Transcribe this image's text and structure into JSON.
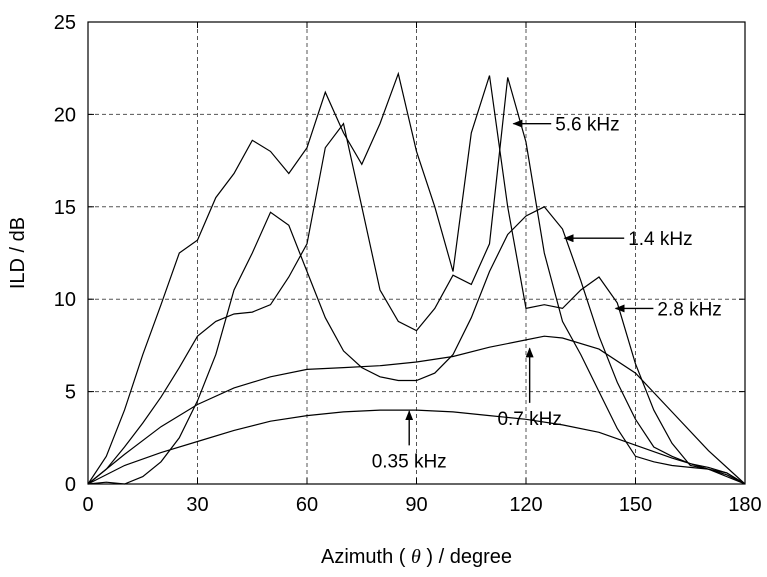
{
  "chart_data": {
    "type": "line",
    "title": "",
    "xlabel_prefix": "Azimuth ( ",
    "xlabel_symbol": "θ",
    "xlabel_suffix": " ) / degree",
    "ylabel": "ILD / dB",
    "xlim": [
      0,
      180
    ],
    "ylim": [
      0,
      25
    ],
    "xticks": [
      0,
      30,
      60,
      90,
      120,
      150,
      180
    ],
    "yticks": [
      0,
      5,
      10,
      15,
      20,
      25
    ],
    "grid": true,
    "line_color": "#000000",
    "series": [
      {
        "name": "0.35 kHz",
        "x": [
          0,
          10,
          20,
          30,
          40,
          50,
          60,
          70,
          80,
          90,
          100,
          110,
          120,
          130,
          140,
          150,
          160,
          170,
          180
        ],
        "y": [
          0,
          1.0,
          1.7,
          2.3,
          2.9,
          3.4,
          3.7,
          3.9,
          4.0,
          4.0,
          3.9,
          3.7,
          3.5,
          3.2,
          2.8,
          2.1,
          1.4,
          0.8,
          0
        ]
      },
      {
        "name": "0.7 kHz",
        "x": [
          0,
          10,
          20,
          30,
          40,
          50,
          60,
          70,
          80,
          90,
          100,
          110,
          120,
          125,
          130,
          140,
          150,
          160,
          170,
          180
        ],
        "y": [
          0,
          1.6,
          3.1,
          4.3,
          5.2,
          5.8,
          6.2,
          6.3,
          6.4,
          6.6,
          6.9,
          7.4,
          7.8,
          8.0,
          7.9,
          7.3,
          6.0,
          3.9,
          1.8,
          0
        ]
      },
      {
        "name": "1.4 kHz",
        "x": [
          0,
          5,
          10,
          15,
          20,
          25,
          30,
          35,
          40,
          45,
          50,
          55,
          60,
          65,
          70,
          75,
          80,
          85,
          90,
          95,
          100,
          105,
          110,
          115,
          120,
          125,
          130,
          135,
          140,
          145,
          150,
          155,
          160,
          165,
          170,
          175,
          180
        ],
        "y": [
          0,
          0.8,
          2.0,
          3.3,
          4.7,
          6.3,
          8.0,
          8.8,
          9.2,
          9.3,
          9.7,
          11.2,
          13.0,
          18.2,
          19.5,
          15.0,
          10.5,
          8.8,
          8.3,
          9.5,
          11.3,
          10.8,
          13.0,
          22.0,
          18.5,
          12.5,
          8.8,
          7.0,
          5.0,
          3.0,
          1.5,
          1.2,
          1.0,
          0.9,
          0.8,
          0.5,
          0
        ]
      },
      {
        "name": "2.8 kHz",
        "x": [
          0,
          5,
          10,
          15,
          20,
          25,
          30,
          35,
          40,
          45,
          50,
          55,
          60,
          65,
          70,
          75,
          80,
          85,
          90,
          95,
          100,
          105,
          110,
          115,
          120,
          125,
          130,
          135,
          140,
          145,
          150,
          155,
          160,
          165,
          170,
          175,
          180
        ],
        "y": [
          0,
          0.1,
          0.0,
          0.4,
          1.2,
          2.5,
          4.5,
          7.0,
          10.5,
          12.5,
          14.7,
          14.0,
          11.5,
          9.0,
          7.2,
          6.3,
          5.8,
          5.6,
          5.6,
          6.0,
          7.0,
          9.0,
          11.5,
          13.5,
          14.5,
          15.0,
          13.8,
          11.0,
          8.0,
          5.5,
          3.5,
          2.0,
          1.5,
          1.1,
          0.9,
          0.6,
          0
        ]
      },
      {
        "name": "5.6 kHz",
        "x": [
          0,
          5,
          10,
          15,
          20,
          25,
          30,
          35,
          40,
          45,
          50,
          55,
          60,
          65,
          70,
          75,
          80,
          85,
          90,
          95,
          100,
          105,
          110,
          115,
          120,
          125,
          130,
          135,
          140,
          145,
          150,
          155,
          160,
          165,
          170,
          175,
          180
        ],
        "y": [
          0,
          1.5,
          4.0,
          7.0,
          9.7,
          12.5,
          13.2,
          15.5,
          16.8,
          18.6,
          18.0,
          16.8,
          18.2,
          21.2,
          19.0,
          17.3,
          19.5,
          22.2,
          18.0,
          15.0,
          11.5,
          19.0,
          22.1,
          15.0,
          9.5,
          9.7,
          9.5,
          10.5,
          11.2,
          9.8,
          6.5,
          4.0,
          2.2,
          1.0,
          0.8,
          0.6,
          0
        ]
      }
    ],
    "annotations": [
      {
        "text": "5.6 kHz",
        "arrow_to": [
          116,
          19.5
        ],
        "label_at": [
          128,
          19.5
        ],
        "direction": "left"
      },
      {
        "text": "1.4 kHz",
        "arrow_to": [
          130,
          13.3
        ],
        "label_at": [
          148,
          13.3
        ],
        "direction": "left"
      },
      {
        "text": "2.8 kHz",
        "arrow_to": [
          144,
          9.5
        ],
        "label_at": [
          156,
          9.5
        ],
        "direction": "left"
      },
      {
        "text": "0.7 kHz",
        "arrow_to": [
          121,
          7.5
        ],
        "label_at": [
          121,
          3.2
        ],
        "direction": "up"
      },
      {
        "text": "0.35 kHz",
        "arrow_to": [
          88,
          4.1
        ],
        "label_at": [
          88,
          0.9
        ],
        "direction": "up"
      }
    ]
  }
}
